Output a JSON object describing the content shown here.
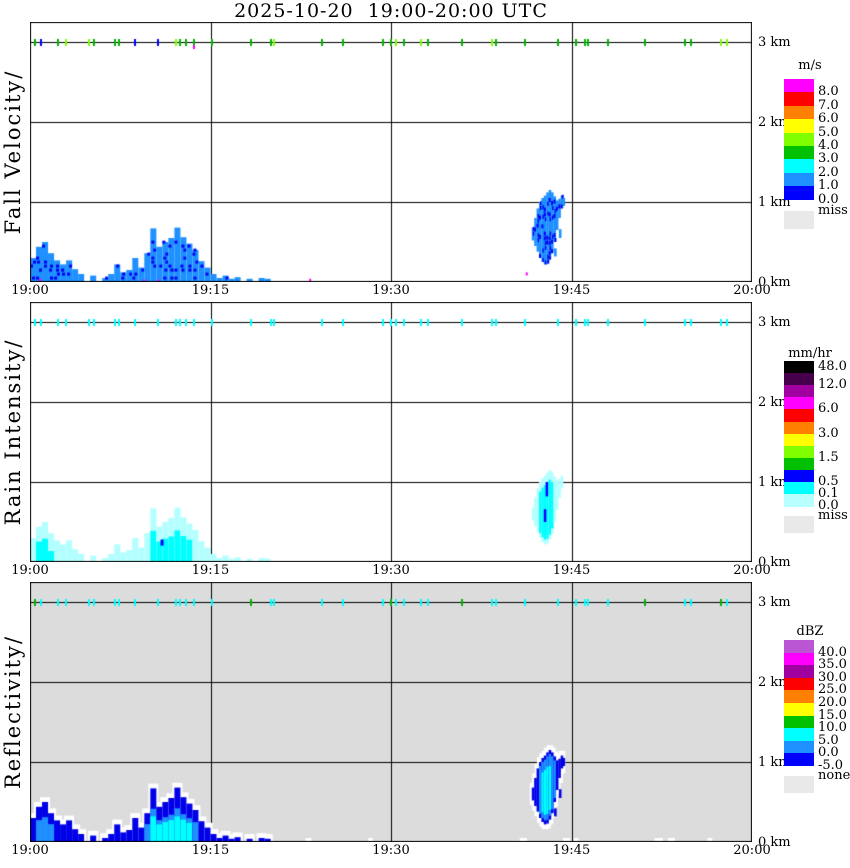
{
  "title": "2025-10-20  19:00-20:00 UTC",
  "chart_data": {
    "type": "heatmap",
    "title": "2025-10-20  19:00-20:00 UTC",
    "x_axis": {
      "ticks": [
        "19:00",
        "19:15",
        "19:30",
        "19:45",
        "20:00"
      ],
      "range_minutes": [
        0,
        60
      ],
      "gridlines_minutes": [
        15,
        30,
        45
      ]
    },
    "y_axis": {
      "ticks": [
        "3 km",
        "2 km",
        "1 km",
        "0 km"
      ],
      "range_km": [
        0,
        3.25
      ],
      "gridlines_km": [
        3,
        2,
        1
      ]
    },
    "panels": [
      {
        "axis_label": "Fall Velocity/",
        "units": "m/s",
        "plot_background": "#FFFFFF",
        "legend": [
          {
            "color": "#FF00FF",
            "label": "8.0"
          },
          {
            "color": "#FF0000",
            "label": "7.0"
          },
          {
            "color": "#FF8000",
            "label": "6.0"
          },
          {
            "color": "#FFFF00",
            "label": "5.0"
          },
          {
            "color": "#80FF00",
            "label": "4.0"
          },
          {
            "color": "#00C000",
            "label": "3.0"
          },
          {
            "color": "#00FFFF",
            "label": "2.0"
          },
          {
            "color": "#1E90FF",
            "label": "1.0"
          },
          {
            "color": "#0000FF",
            "label": "0.0"
          }
        ],
        "legend_missing": {
          "color": "#E9E9E9",
          "label": "miss"
        },
        "echo_colors": {
          "body": "#1E90FF",
          "core": "#0000F0",
          "surface_specks": "#FF00FF"
        }
      },
      {
        "axis_label": "Rain Intensity/",
        "units": "mm/hr",
        "plot_background": "#FFFFFF",
        "legend": [
          {
            "color": "#000000",
            "label": "48.0",
            "label_at": "center"
          },
          {
            "color": "#46004B",
            "label": "12.0"
          },
          {
            "color": "#A000A0",
            "label": ""
          },
          {
            "color": "#FF00FF",
            "label": "6.0"
          },
          {
            "color": "#FF0000",
            "label": ""
          },
          {
            "color": "#FF8000",
            "label": "3.0"
          },
          {
            "color": "#FFFF00",
            "label": ""
          },
          {
            "color": "#80FF00",
            "label": "1.5"
          },
          {
            "color": "#00C000",
            "label": ""
          },
          {
            "color": "#0000FF",
            "label": "0.5"
          },
          {
            "color": "#00FFFF",
            "label": "0.1"
          },
          {
            "color": "#B8FFFF",
            "label": "0.0"
          }
        ],
        "legend_missing": {
          "color": "#E9E9E9",
          "label": "miss"
        },
        "echo_colors": {
          "body": "#B3FFFF",
          "core": "#00FFFF",
          "peak": "#0000FF"
        }
      },
      {
        "axis_label": "Reflectivity/",
        "units": "dBZ",
        "plot_background": "#DCDCDC",
        "legend": [
          {
            "color": "#BA55D3",
            "label": "40.0"
          },
          {
            "color": "#FF00FF",
            "label": "35.0"
          },
          {
            "color": "#A000A0",
            "label": "30.0"
          },
          {
            "color": "#FF0000",
            "label": "25.0"
          },
          {
            "color": "#FF8000",
            "label": "20.0"
          },
          {
            "color": "#FFFF00",
            "label": "15.0"
          },
          {
            "color": "#00C000",
            "label": "10.0"
          },
          {
            "color": "#00FFFF",
            "label": "5.0"
          },
          {
            "color": "#1E90FF",
            "label": "0.0"
          },
          {
            "color": "#0000FF",
            "label": "-5.0"
          }
        ],
        "legend_missing": {
          "color": "#E9E9E9",
          "label": "none"
        },
        "echo_colors": {
          "fringe": "#FFFFFF",
          "body": "#0000E8",
          "inner": "#1E90FF",
          "core": "#00FFFF"
        }
      }
    ],
    "echo_low_level": {
      "t_start_min": 0,
      "t_step_min": 0.5,
      "top_km": [
        0.3,
        0.44,
        0.5,
        0.36,
        0.27,
        0.22,
        0.27,
        0.16,
        0.1,
        0.0,
        0.08,
        0.0,
        0.05,
        0.1,
        0.22,
        0.12,
        0.15,
        0.3,
        0.18,
        0.36,
        0.67,
        0.44,
        0.5,
        0.55,
        0.68,
        0.56,
        0.48,
        0.4,
        0.26,
        0.18,
        0.1,
        0.05,
        0.08,
        0.04,
        0.06,
        0.0,
        0.04,
        0.0,
        0.05,
        0.04
      ]
    },
    "echo_streak": {
      "columns_min_bottom_top_km": [
        [
          41.7,
          0.52,
          0.68
        ],
        [
          41.9,
          0.45,
          0.8
        ],
        [
          42.1,
          0.38,
          0.92
        ],
        [
          42.3,
          0.3,
          1.0
        ],
        [
          42.5,
          0.25,
          1.05
        ],
        [
          42.7,
          0.22,
          1.08
        ],
        [
          42.9,
          0.23,
          1.12
        ],
        [
          43.1,
          0.28,
          1.15
        ],
        [
          43.3,
          0.36,
          1.12
        ],
        [
          43.5,
          0.5,
          1.07
        ],
        [
          43.7,
          0.65,
          1.02
        ],
        [
          43.9,
          0.8,
          1.04
        ],
        [
          44.1,
          0.92,
          1.08
        ]
      ],
      "fragments_min_bottom_top_km": [
        [
          43.55,
          0.32,
          0.42
        ],
        [
          43.95,
          0.55,
          0.66
        ],
        [
          44.25,
          0.95,
          1.05
        ]
      ]
    },
    "surface_specks_min_km": [
      [
        0.75,
        0.04
      ],
      [
        9.4,
        0.03
      ],
      [
        10.6,
        0.03
      ],
      [
        23.2,
        0.04
      ],
      [
        41.2,
        0.12
      ]
    ],
    "ri_peak_pixel_min_km": [
      10.85,
      0.28
    ],
    "ri_streak_blue_min_bottom_top_km": [
      [
        42.85,
        0.82,
        1.0
      ],
      [
        42.7,
        0.5,
        0.66
      ]
    ],
    "rf_surface_white_patches_min": [
      [
        4.0,
        4.4
      ],
      [
        5.0,
        5.4
      ],
      [
        6.3,
        6.7
      ],
      [
        14.6,
        15.0
      ],
      [
        15.8,
        16.2
      ],
      [
        16.8,
        17.2
      ],
      [
        18.2,
        18.6
      ],
      [
        19.2,
        19.6
      ],
      [
        22.9,
        23.4
      ],
      [
        28.1,
        28.5
      ],
      [
        40.7,
        41.3
      ],
      [
        44.3,
        44.9
      ],
      [
        45.2,
        45.6
      ],
      [
        51.9,
        52.6
      ],
      [
        53.0,
        53.6
      ],
      [
        56.3,
        56.7
      ]
    ],
    "top_row_km": 3.0,
    "tick_palette": {
      "g": "#00B400",
      "c": "#80FF00",
      "b": "#0000FF",
      "y": "#00FFFF"
    },
    "top_row_ticks": [
      [
        0.4,
        "g",
        "y",
        "g"
      ],
      [
        0.9,
        "b",
        "y",
        "y"
      ],
      [
        2.3,
        "g",
        "y",
        "y"
      ],
      [
        3.0,
        "c",
        "y",
        "y"
      ],
      [
        4.9,
        "c",
        "y",
        "y"
      ],
      [
        5.3,
        "g",
        "y",
        "y"
      ],
      [
        7.1,
        "g",
        "y",
        "y"
      ],
      [
        7.4,
        "g",
        "y",
        "y"
      ],
      [
        8.7,
        "b",
        "y",
        "y"
      ],
      [
        10.6,
        "b",
        "y",
        "y"
      ],
      [
        12.1,
        "c",
        "y",
        "y"
      ],
      [
        12.5,
        "g",
        "y",
        "y"
      ],
      [
        13.0,
        "g",
        "y",
        "y"
      ],
      [
        13.6,
        "g",
        "y",
        "y"
      ],
      [
        15.1,
        "g",
        "y",
        "y"
      ],
      [
        18.4,
        "g",
        "y",
        "g"
      ],
      [
        20.0,
        "g",
        "y",
        "y"
      ],
      [
        20.3,
        "c",
        "y",
        "y"
      ],
      [
        24.3,
        "g",
        "y",
        "y"
      ],
      [
        26.0,
        "g",
        "y",
        "y"
      ],
      [
        29.3,
        "g",
        "y",
        "y"
      ],
      [
        30.0,
        "g",
        "y",
        "g"
      ],
      [
        30.4,
        "c",
        "y",
        "y"
      ],
      [
        31.1,
        "g",
        "y",
        "y"
      ],
      [
        32.5,
        "c",
        "y",
        "y"
      ],
      [
        33.1,
        "g",
        "y",
        "y"
      ],
      [
        35.9,
        "g",
        "y",
        "g"
      ],
      [
        38.4,
        "c",
        "y",
        "y"
      ],
      [
        38.7,
        "g",
        "y",
        "y"
      ],
      [
        41.1,
        "g",
        "y",
        "y"
      ],
      [
        43.9,
        "g",
        "y",
        "y"
      ],
      [
        45.4,
        "g",
        "y",
        "y"
      ],
      [
        46.1,
        "g",
        "y",
        "y"
      ],
      [
        46.4,
        "g",
        "y",
        "y"
      ],
      [
        48.0,
        "g",
        "y",
        "y"
      ],
      [
        51.1,
        "g",
        "y",
        "g"
      ],
      [
        54.4,
        "g",
        "y",
        "y"
      ],
      [
        54.9,
        "g",
        "y",
        "y"
      ],
      [
        57.4,
        "c",
        "y",
        "g"
      ],
      [
        57.9,
        "c",
        "y",
        "y"
      ]
    ],
    "fv_below_tick": {
      "t": 13.6,
      "color": "#FF00FF"
    }
  }
}
